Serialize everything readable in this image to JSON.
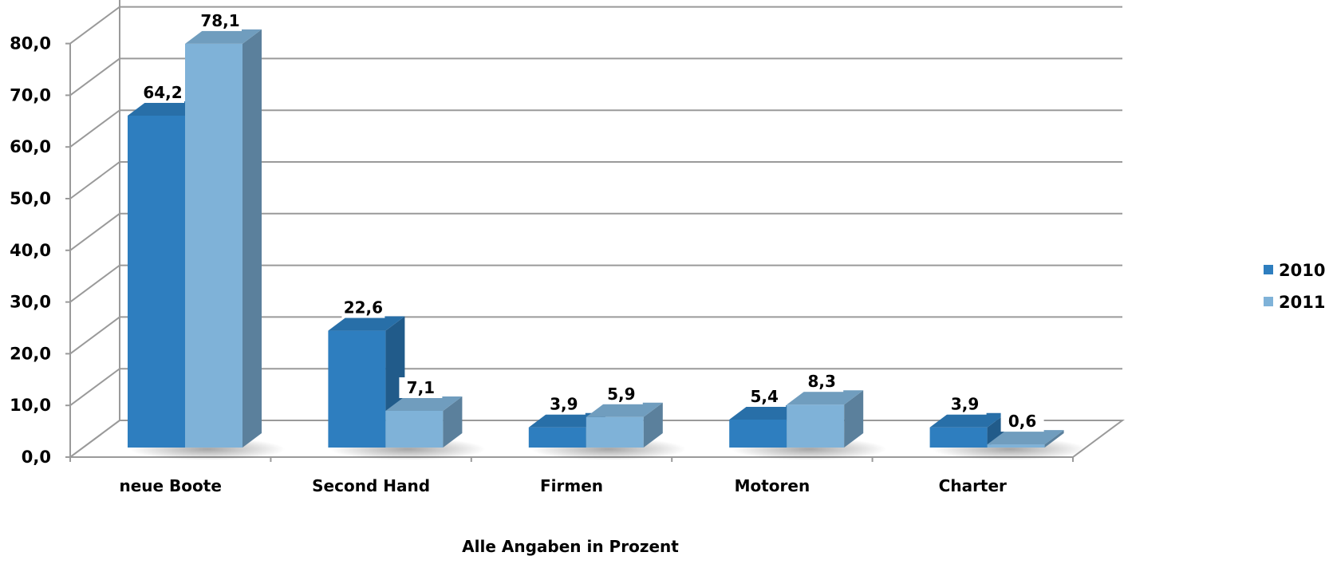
{
  "chart_data": {
    "type": "bar",
    "categories": [
      "neue Boote",
      "Second Hand",
      "Firmen",
      "Motoren",
      "Charter"
    ],
    "series": [
      {
        "name": "2010",
        "values": [
          64.2,
          22.6,
          3.9,
          5.4,
          3.9
        ],
        "labels": [
          "64,2",
          "22,6",
          "3,9",
          "5,4",
          "3,9"
        ],
        "color": "#2e7ebf"
      },
      {
        "name": "2011",
        "values": [
          78.1,
          7.1,
          5.9,
          8.3,
          0.6
        ],
        "labels": [
          "78,1",
          "7,1",
          "5,9",
          "8,3",
          "0,6"
        ],
        "color": "#7fb2d8"
      }
    ],
    "ylim": [
      0,
      80
    ],
    "yticks": [
      "0,0",
      "10,0",
      "20,0",
      "30,0",
      "40,0",
      "50,0",
      "60,0",
      "70,0",
      "80,0"
    ],
    "xlabel": "Alle Angaben in Prozent",
    "ylabel": "",
    "grid": true,
    "legend_position": "right",
    "style": "3d-clustered-column"
  }
}
